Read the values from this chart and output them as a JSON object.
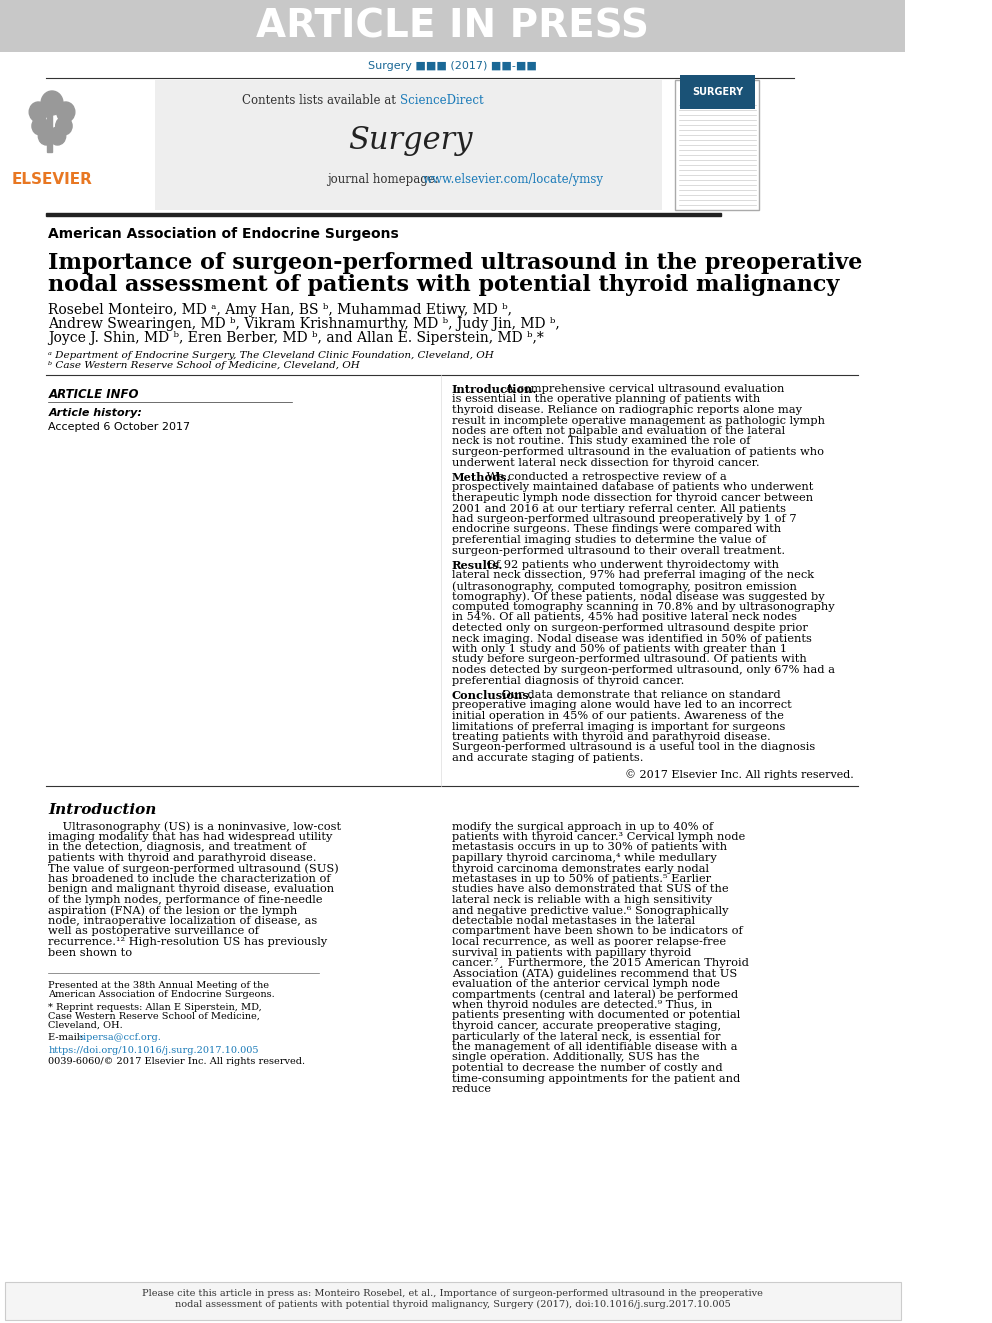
{
  "article_in_press_bg": "#c8c8c8",
  "article_in_press_text": "ARTICLE IN PRESS",
  "article_in_press_color": "#ffffff",
  "journal_ref_color": "#1a6896",
  "journal_ref": "Surgery ■■■ (2017) ■■-■■",
  "sciencedirect_color": "#1a7ab8",
  "journal_homepage_url_color": "#1a7ab8",
  "elsevier_color": "#e87722",
  "association": "American Association of Endocrine Surgeons",
  "title_line1": "Importance of surgeon-performed ultrasound in the preoperative",
  "title_line2": "nodal assessment of patients with potential thyroid malignancy",
  "authors": "Rosebel Monteiro, MD ᵃ, Amy Han, BS ᵇ, Muhammad Etiwy, MD ᵇ,",
  "authors2": "Andrew Swearingen, MD ᵇ, Vikram Krishnamurthy, MD ᵇ, Judy Jin, MD ᵇ,",
  "authors3": "Joyce J. Shin, MD ᵇ, Eren Berber, MD ᵇ, and Allan E. Siperstein, MD ᵇ,*",
  "affil1": "ᵃ Department of Endocrine Surgery, The Cleveland Clinic Foundation, Cleveland, OH",
  "affil2": "ᵇ Case Western Reserve School of Medicine, Cleveland, OH",
  "article_info_label": "ARTICLE INFO",
  "article_history_label": "Article history:",
  "accepted_label": "Accepted 6 October 2017",
  "intro_bold": "Introduction.",
  "intro_text": " A comprehensive cervical ultrasound evaluation is essential in the operative planning of patients with thyroid disease. Reliance on radiographic reports alone may result in incomplete operative management as pathologic lymph nodes are often not palpable and evaluation of the lateral neck is not routine. This study examined the role of surgeon-performed ultrasound in the evaluation of patients who underwent lateral neck dissection for thyroid cancer.",
  "methods_bold": "Methods.",
  "methods_text": " We conducted a retrospective review of a prospectively maintained database of patients who underwent therapeutic lymph node dissection for thyroid cancer between 2001 and 2016 at our tertiary referral center. All patients had surgeon-performed ultrasound preoperatively by 1 of 7 endocrine surgeons. These findings were compared with preferential imaging studies to determine the value of surgeon-performed ultrasound to their overall treatment.",
  "results_bold": "Results.",
  "results_text": " Of 92 patients who underwent thyroidectomy with lateral neck dissection, 97% had preferral imaging of the neck (ultrasonography, computed tomography, positron emission tomography). Of these patients, nodal disease was suggested by computed tomography scanning in 70.8% and by ultrasonography in 54%. Of all patients, 45% had positive lateral neck nodes detected only on surgeon-performed ultrasound despite prior neck imaging. Nodal disease was identified in 50% of patients with only 1 study and 50% of patients with greater than 1 study before surgeon-performed ultrasound. Of patients with nodes detected by surgeon-performed ultrasound, only 67% had a preferential diagnosis of thyroid cancer.",
  "conclusions_bold": "Conclusions.",
  "conclusions_text": " Our data demonstrate that reliance on standard preoperative imaging alone would have led to an incorrect initial operation in 45% of our patients. Awareness of the limitations of preferral imaging is important for surgeons treating patients with thyroid and parathyroid disease. Surgeon-performed ultrasound is a useful tool in the diagnosis and accurate staging of patients.",
  "copyright": "© 2017 Elsevier Inc. All rights reserved.",
  "intro_section_title": "Introduction",
  "intro_section_text": "Ultrasonography (US) is a noninvasive, low-cost imaging modality that has had widespread utility in the detection, diagnosis, and treatment of patients with thyroid and parathyroid disease. The value of surgeon-performed ultrasound (SUS) has broadened to include the characterization of benign and malignant thyroid disease, evaluation of the lymph nodes, performance of fine-needle aspiration (FNA) of the lesion or the lymph node, intraoperative localization of disease, as well as postoperative surveillance of recurrence.¹² High-resolution US has previously been shown to",
  "right_col_text": "modify the surgical approach in up to 40% of patients with thyroid cancer.³ Cervical lymph node metastasis occurs in up to 30% of patients with papillary thyroid carcinoma,⁴ while medullary thyroid carcinoma demonstrates early nodal metastases in up to 50% of patients.⁵ Earlier studies have also demonstrated that SUS of the lateral neck is reliable with a high sensitivity and negative predictive value.⁶ Sonographically detectable nodal metastases in the lateral compartment have been shown to be indicators of local recurrence, as well as poorer relapse-free survival in patients with papillary thyroid cancer.⁷¸ Furthermore, the 2015 American Thyroid Association (ATA) guidelines recommend that US evaluation of the anterior cervical lymph node compartments (central and lateral) be performed when thyroid nodules are detected.⁹ Thus, in patients presenting with documented or potential thyroid cancer, accurate preoperative staging, particularly of the lateral neck, is essential for the management of all identifiable disease with a single operation. Additionally, SUS has the potential to decrease the number of costly and time-consuming appointments for the patient and reduce",
  "footnote_presented": "Presented at the 38th Annual Meeting of the American Association of Endocrine Surgeons.",
  "footnote_reprint": "* Reprint requests: Allan E Siperstein, MD, Case Western Reserve School of Medicine, Cleveland, OH.",
  "footnote_email_label": "E-mail: ",
  "footnote_email": "sipersa@ccf.org.",
  "doi_text": "https://doi.org/10.1016/j.surg.2017.10.005",
  "issn_text": "0039-6060/© 2017 Elsevier Inc. All rights reserved.",
  "bottom_note": "Please cite this article in press as: Monteiro Rosebel, et al., Importance of surgeon-performed ultrasound in the preoperative nodal assessment of patients with potential thyroid malignancy, Surgery (2017), doi:10.1016/j.surg.2017.10.005"
}
